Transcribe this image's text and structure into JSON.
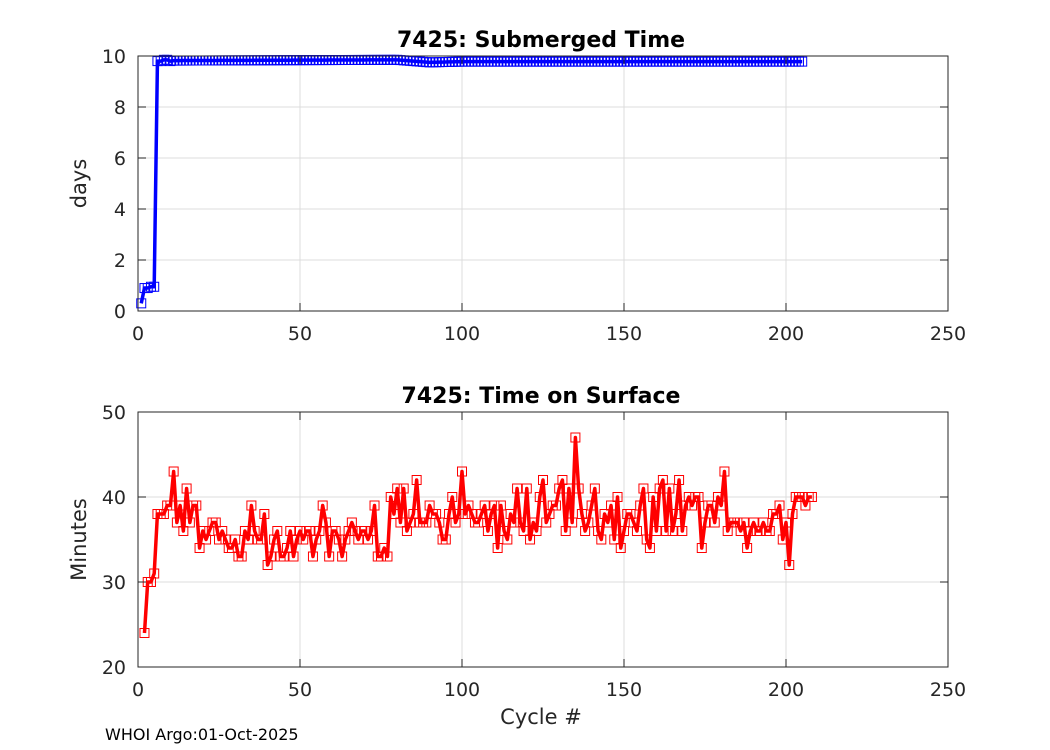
{
  "footer": "WHOI Argo:01-Oct-2025",
  "chart_data": [
    {
      "type": "line",
      "title": "7425: Submerged Time",
      "xlabel": "",
      "ylabel": "days",
      "xlim": [
        0,
        250
      ],
      "ylim": [
        0,
        10
      ],
      "xticks": [
        0,
        50,
        100,
        150,
        200,
        250
      ],
      "yticks": [
        0,
        2,
        4,
        6,
        8,
        10
      ],
      "grid": true,
      "marker": "square",
      "color": "#0000ff",
      "segments": [
        {
          "x": [
            1,
            2,
            3,
            4,
            5,
            6,
            7,
            8,
            9,
            10
          ],
          "y": [
            0.3,
            0.9,
            0.9,
            0.95,
            0.95,
            9.8,
            9.8,
            9.85,
            9.85,
            9.8
          ]
        },
        {
          "x_start": 11,
          "x_end": 205,
          "knots": [
            [
              11,
              9.82
            ],
            [
              80,
              9.85
            ],
            [
              85,
              9.8
            ],
            [
              90,
              9.75
            ],
            [
              100,
              9.78
            ],
            [
              205,
              9.78
            ]
          ]
        }
      ]
    },
    {
      "type": "line",
      "title": "7425: Time on Surface",
      "xlabel": "Cycle #",
      "ylabel": "Minutes",
      "xlim": [
        0,
        250
      ],
      "ylim": [
        20,
        50
      ],
      "xticks": [
        0,
        50,
        100,
        150,
        200,
        250
      ],
      "yticks": [
        20,
        30,
        40,
        50
      ],
      "grid": true,
      "marker": "square",
      "color": "#ff0000",
      "x_start": 2,
      "y": [
        24,
        30,
        30,
        31,
        38,
        38,
        38,
        39,
        39,
        43,
        37,
        39,
        36,
        41,
        37,
        39,
        39,
        34,
        36,
        35,
        36,
        37,
        37,
        35,
        36,
        35,
        34,
        34,
        35,
        33,
        33,
        36,
        35,
        39,
        36,
        35,
        35,
        38,
        32,
        33,
        35,
        36,
        33,
        33,
        34,
        36,
        33,
        35,
        36,
        35,
        36,
        36,
        33,
        35,
        36,
        39,
        37,
        33,
        36,
        36,
        35,
        33,
        35,
        36,
        37,
        36,
        35,
        36,
        36,
        35,
        36,
        39,
        33,
        33,
        34,
        33,
        40,
        38,
        41,
        37,
        41,
        36,
        37,
        38,
        42,
        37,
        37,
        37,
        39,
        38,
        38,
        37,
        35,
        35,
        38,
        40,
        37,
        38,
        43,
        38,
        39,
        38,
        37,
        37,
        38,
        39,
        36,
        38,
        39,
        34,
        39,
        36,
        35,
        38,
        37,
        41,
        37,
        36,
        41,
        35,
        37,
        36,
        40,
        42,
        37,
        38,
        39,
        39,
        41,
        42,
        36,
        41,
        37,
        47,
        41,
        38,
        36,
        37,
        39,
        41,
        36,
        35,
        38,
        37,
        39,
        35,
        40,
        34,
        36,
        38,
        38,
        37,
        36,
        39,
        41,
        35,
        34,
        40,
        36,
        41,
        42,
        36,
        41,
        36,
        38,
        42,
        36,
        39,
        40,
        39,
        40,
        40,
        34,
        37,
        39,
        39,
        37,
        40,
        39,
        43,
        36,
        37,
        37,
        37,
        36,
        37,
        34,
        36,
        37,
        36,
        36,
        37,
        36,
        36,
        38,
        38,
        39,
        35,
        37,
        32,
        38,
        40,
        40,
        40,
        39,
        40,
        40
      ]
    }
  ]
}
